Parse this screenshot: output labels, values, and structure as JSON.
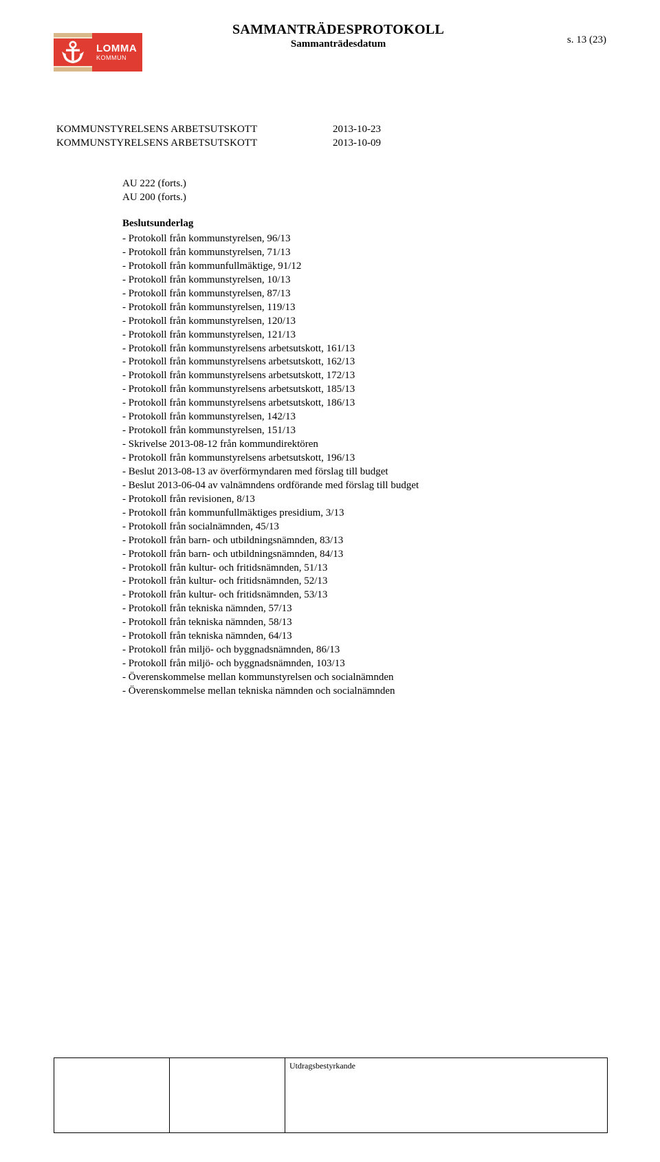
{
  "colors": {
    "brand_red": "#e03c31",
    "text": "#000000",
    "page_bg": "#ffffff",
    "logo_bar_top": "#d9b98a",
    "logo_bar_light": "#f2e6d2"
  },
  "typography": {
    "body_family": "Times New Roman",
    "body_size_pt": 11,
    "heading_size_pt": 15
  },
  "logo": {
    "line1": "LOMMA",
    "line2": "KOMMUN"
  },
  "header": {
    "title": "SAMMANTRÄDESPROTOKOLL",
    "subtitle": "Sammanträdesdatum",
    "page_label": "s. 13 (23)"
  },
  "committee_rows": [
    {
      "name": "KOMMUNSTYRELSENS ARBETSUTSKOTT",
      "date": "2013-10-23"
    },
    {
      "name": "KOMMUNSTYRELSENS ARBETSUTSKOTT",
      "date": "2013-10-09"
    }
  ],
  "au_lines": [
    "AU 222 (forts.)",
    "AU 200 (forts.)"
  ],
  "underlag_heading": "Beslutsunderlag",
  "underlag_items": [
    "- Protokoll från kommunstyrelsen, 96/13",
    "- Protokoll från kommunstyrelsen, 71/13",
    "- Protokoll från kommunfullmäktige, 91/12",
    "- Protokoll från kommunstyrelsen, 10/13",
    "- Protokoll från kommunstyrelsen, 87/13",
    "- Protokoll från kommunstyrelsen, 119/13",
    "- Protokoll från kommunstyrelsen, 120/13",
    "- Protokoll från kommunstyrelsen, 121/13",
    "- Protokoll från kommunstyrelsens arbetsutskott, 161/13",
    "- Protokoll från kommunstyrelsens arbetsutskott, 162/13",
    "- Protokoll från kommunstyrelsens arbetsutskott, 172/13",
    "- Protokoll från kommunstyrelsens arbetsutskott, 185/13",
    "- Protokoll från kommunstyrelsens arbetsutskott, 186/13",
    "- Protokoll från kommunstyrelsen, 142/13",
    "- Protokoll från kommunstyrelsen, 151/13",
    "- Skrivelse 2013-08-12 från kommundirektören",
    "- Protokoll från kommunstyrelsens arbetsutskott, 196/13",
    "- Beslut 2013-08-13 av överförmyndaren med förslag till budget",
    "- Beslut 2013-06-04 av valnämndens ordförande med förslag till budget",
    "- Protokoll från revisionen, 8/13",
    "- Protokoll från kommunfullmäktiges presidium, 3/13",
    "- Protokoll från socialnämnden, 45/13",
    "- Protokoll från barn- och utbildningsnämnden, 83/13",
    "- Protokoll från barn- och utbildningsnämnden, 84/13",
    "- Protokoll från kultur- och fritidsnämnden, 51/13",
    "- Protokoll från kultur- och fritidsnämnden, 52/13",
    "- Protokoll från kultur- och fritidsnämnden, 53/13",
    "- Protokoll från tekniska nämnden, 57/13",
    "- Protokoll från tekniska nämnden, 58/13",
    "- Protokoll från tekniska nämnden, 64/13",
    "- Protokoll från miljö- och byggnadsnämnden, 86/13",
    "- Protokoll från miljö- och byggnadsnämnden, 103/13",
    "- Överenskommelse mellan kommunstyrelsen och socialnämnden",
    "- Överenskommelse mellan tekniska nämnden och socialnämnden"
  ],
  "footer": {
    "cell3_label": "Utdragsbestyrkande"
  }
}
